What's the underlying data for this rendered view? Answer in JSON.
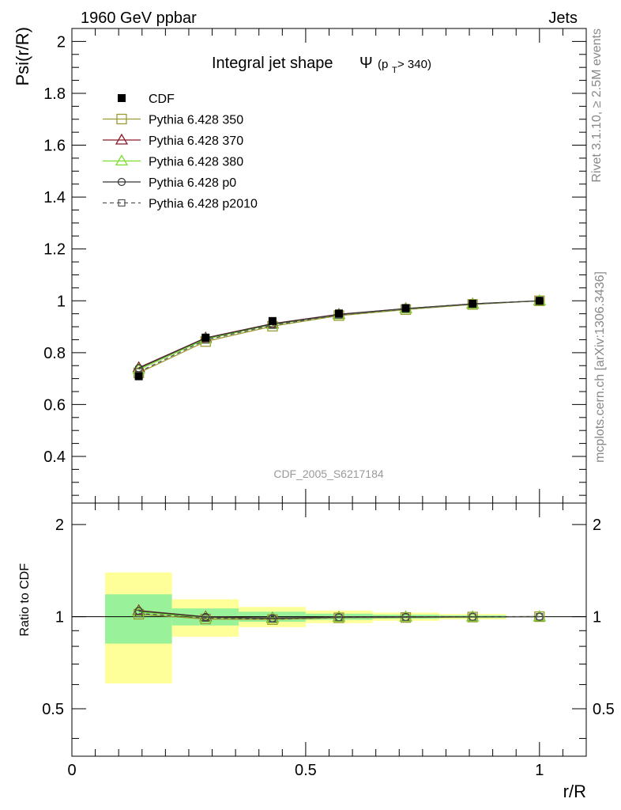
{
  "header": {
    "left": "1960 GeV ppbar",
    "right": "Jets"
  },
  "side_labels": {
    "rivet": "Rivet 3.1.10, ≥ 2.5M events",
    "mcplots": "mcplots.cern.ch [arXiv:1306.3436]"
  },
  "watermark": "CDF_2005_S6217184",
  "chart_data": {
    "type": "line",
    "title": "Integral jet shape",
    "title_symbol": "Ψ",
    "title_sub_p": "(p",
    "title_sub_T": "T",
    "title_sub_rest": " > 340)",
    "xlabel": "r/R",
    "ylabel": "Psi(r/R)",
    "ratio_ylabel": "Ratio to CDF",
    "xlim": [
      0,
      1.1
    ],
    "ylim": [
      0.22,
      2.05
    ],
    "ratio_ylim": [
      0.35,
      2.35
    ],
    "ratio_log": true,
    "x_ticks": [
      "0",
      "0.5",
      "1"
    ],
    "y_ticks": [
      "0.4",
      "0.6",
      "0.8",
      "1",
      "1.2",
      "1.4",
      "1.6",
      "1.8",
      "2"
    ],
    "ratio_ticks": [
      "0.5",
      "1",
      "2"
    ],
    "ratio_ticks_right": [
      "0.5",
      "1",
      "2"
    ],
    "x": [
      0.143,
      0.286,
      0.429,
      0.571,
      0.714,
      0.857,
      1.0
    ],
    "bin_edges": [
      0.071,
      0.214,
      0.357,
      0.5,
      0.643,
      0.786,
      0.929,
      1.071
    ],
    "legend_position": "top-left",
    "series": [
      {
        "name": "CDF",
        "color": "#000000",
        "marker": "filled-square",
        "dash": "none",
        "values": [
          0.709,
          0.858,
          0.922,
          0.951,
          0.972,
          0.989,
          1.0
        ],
        "band_inner": [
          0.13,
          0.055,
          0.035,
          0.022,
          0.015,
          0.01,
          0.0
        ],
        "band_outer": [
          0.28,
          0.12,
          0.07,
          0.045,
          0.03,
          0.02,
          0.0
        ]
      },
      {
        "name": "Pythia 6.428 350",
        "color": "#9a9a30",
        "marker": "open-square",
        "dash": "none",
        "values": [
          0.722,
          0.843,
          0.902,
          0.943,
          0.966,
          0.986,
          1.0
        ]
      },
      {
        "name": "Pythia 6.428 370",
        "color": "#8b1a2a",
        "marker": "open-triangle",
        "dash": "none",
        "values": [
          0.742,
          0.857,
          0.912,
          0.948,
          0.97,
          0.988,
          1.0
        ]
      },
      {
        "name": "Pythia 6.428 380",
        "color": "#7ddd2a",
        "marker": "open-triangle",
        "dash": "none",
        "values": [
          0.735,
          0.852,
          0.909,
          0.946,
          0.969,
          0.987,
          1.0
        ]
      },
      {
        "name": "Pythia 6.428 p0",
        "color": "#333333",
        "marker": "open-circle",
        "dash": "none",
        "values": [
          0.74,
          0.856,
          0.911,
          0.947,
          0.97,
          0.988,
          1.0
        ]
      },
      {
        "name": "Pythia 6.428 p2010",
        "color": "#555555",
        "marker": "open-small-square",
        "dash": "dashed",
        "values": [
          0.726,
          0.849,
          0.906,
          0.945,
          0.968,
          0.987,
          1.0
        ]
      }
    ]
  }
}
